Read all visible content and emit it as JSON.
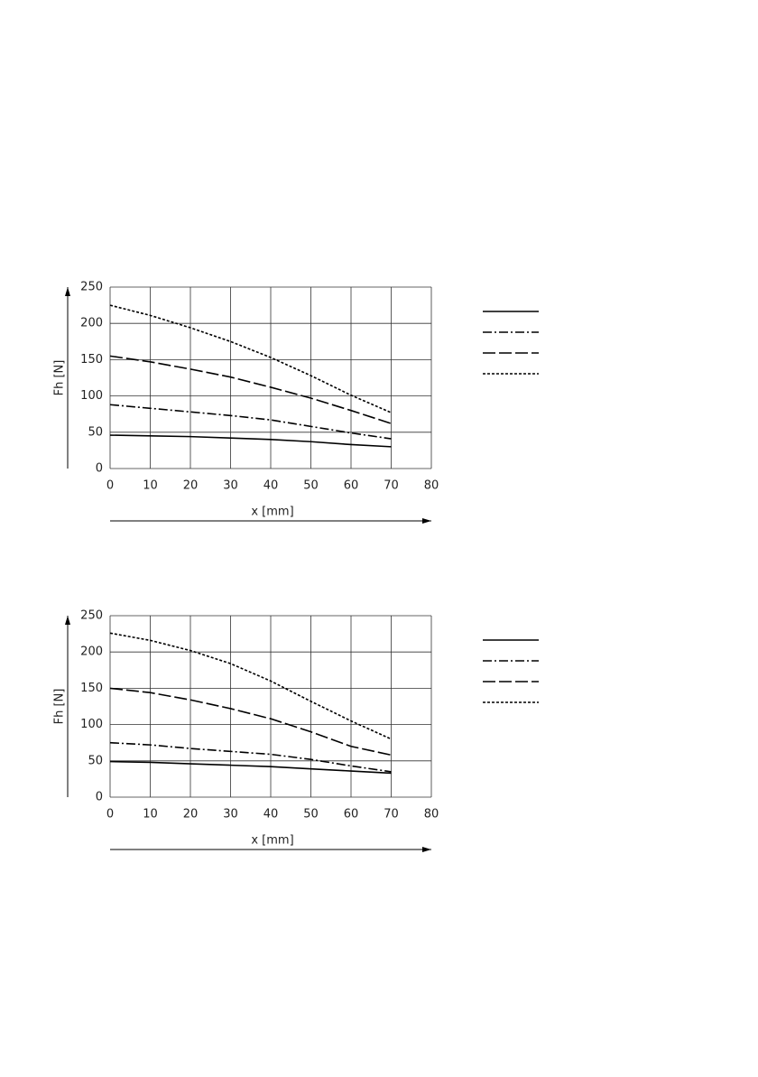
{
  "chart_data": [
    {
      "type": "line",
      "xlabel": "x [mm]",
      "ylabel": "Fh [N]",
      "x": [
        0,
        10,
        20,
        30,
        40,
        50,
        60,
        70
      ],
      "xlim": [
        0,
        80
      ],
      "xticks": [
        0,
        10,
        20,
        30,
        40,
        50,
        60,
        70,
        80
      ],
      "ylim": [
        0,
        250
      ],
      "yticks": [
        0,
        50,
        100,
        150,
        200,
        250
      ],
      "grid": true,
      "series": [
        {
          "color": "#000000",
          "dash": "solid",
          "values": [
            46,
            45,
            44,
            42,
            40,
            37,
            33,
            30
          ]
        },
        {
          "color": "#000000",
          "dash": "dashdot",
          "values": [
            88,
            83,
            78,
            73,
            67,
            58,
            49,
            41
          ]
        },
        {
          "color": "#000000",
          "dash": "dash",
          "values": [
            155,
            147,
            137,
            126,
            112,
            97,
            80,
            62
          ]
        },
        {
          "color": "#000000",
          "dash": "dot",
          "values": [
            225,
            211,
            194,
            175,
            153,
            128,
            101,
            77
          ]
        }
      ]
    },
    {
      "type": "line",
      "xlabel": "x [mm]",
      "ylabel": "Fh [N]",
      "x": [
        0,
        10,
        20,
        30,
        40,
        50,
        60,
        70
      ],
      "xlim": [
        0,
        80
      ],
      "xticks": [
        0,
        10,
        20,
        30,
        40,
        50,
        60,
        70,
        80
      ],
      "ylim": [
        0,
        250
      ],
      "yticks": [
        0,
        50,
        100,
        150,
        200,
        250
      ],
      "grid": true,
      "series": [
        {
          "color": "#000000",
          "dash": "solid",
          "values": [
            49,
            48,
            46,
            44,
            42,
            39,
            36,
            33
          ]
        },
        {
          "color": "#000000",
          "dash": "dashdot",
          "values": [
            75,
            72,
            67,
            63,
            59,
            52,
            43,
            35
          ]
        },
        {
          "color": "#000000",
          "dash": "dash",
          "values": [
            150,
            144,
            134,
            122,
            108,
            90,
            70,
            58
          ]
        },
        {
          "color": "#000000",
          "dash": "dot",
          "values": [
            226,
            216,
            202,
            184,
            160,
            132,
            105,
            80
          ]
        }
      ]
    }
  ]
}
